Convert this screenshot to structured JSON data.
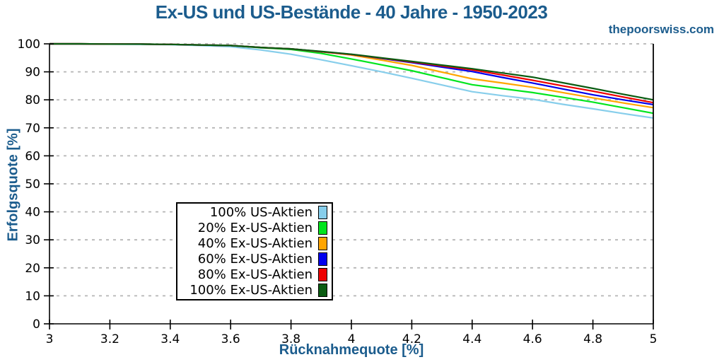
{
  "header": {
    "title": "Ex-US und US-Bestände - 40 Jahre - 1950-2023",
    "watermark": "thepoorswiss.com"
  },
  "chart_data": {
    "type": "line",
    "title": "Ex-US und US-Bestände - 40 Jahre - 1950-2023",
    "xlabel": "Rücknahmequote [%]",
    "ylabel": "Erfolgsquote [%]",
    "xlim": [
      3,
      5
    ],
    "ylim": [
      0,
      100
    ],
    "x_ticks": [
      3,
      3.2,
      3.4,
      3.6,
      3.8,
      4,
      4.2,
      4.4,
      4.6,
      4.8,
      5
    ],
    "y_ticks": [
      0,
      10,
      20,
      30,
      40,
      50,
      60,
      70,
      80,
      90,
      100
    ],
    "grid": "horizontal dashed gridlines only",
    "legend_position": "boxed, center-left inside plot",
    "x": [
      3.0,
      3.1,
      3.2,
      3.3,
      3.4,
      3.5,
      3.6,
      3.7,
      3.8,
      3.9,
      4.0,
      4.1,
      4.2,
      4.3,
      4.4,
      4.5,
      4.6,
      4.7,
      4.8,
      4.9,
      5.0
    ],
    "series": [
      {
        "name": "100% US-Aktien",
        "color": "#87CEEB",
        "values": [
          100,
          99.9,
          99.9,
          99.8,
          99.7,
          99.4,
          99.0,
          97.8,
          96.3,
          94.3,
          92.2,
          90.0,
          87.7,
          85.3,
          82.9,
          81.5,
          80.2,
          78.4,
          76.8,
          75.1,
          73.5
        ]
      },
      {
        "name": "20% Ex-US-Aktien",
        "color": "#00E51E",
        "values": [
          100,
          100,
          99.9,
          99.9,
          99.8,
          99.6,
          99.4,
          98.6,
          98.0,
          96.6,
          94.6,
          92.5,
          90.4,
          87.9,
          85.4,
          84.0,
          82.6,
          80.9,
          79.2,
          77.2,
          75.2
        ]
      },
      {
        "name": "40% Ex-US-Aktien",
        "color": "#FFA500",
        "values": [
          100,
          100,
          99.9,
          99.9,
          99.8,
          99.6,
          99.4,
          98.7,
          98.2,
          97.2,
          96.0,
          94.2,
          92.3,
          89.9,
          87.5,
          86.0,
          84.5,
          82.6,
          80.7,
          78.9,
          77.2
        ]
      },
      {
        "name": "60% Ex-US-Aktien",
        "color": "#0000EE",
        "values": [
          100,
          100,
          99.9,
          99.9,
          99.8,
          99.6,
          99.4,
          98.7,
          98.2,
          97.2,
          96.2,
          94.8,
          93.3,
          91.7,
          90.1,
          88.0,
          86.0,
          83.9,
          81.8,
          80.0,
          78.3
        ]
      },
      {
        "name": "80% Ex-US-Aktien",
        "color": "#EE0000",
        "values": [
          100,
          100,
          99.9,
          99.9,
          99.8,
          99.6,
          99.4,
          98.7,
          98.2,
          97.2,
          96.2,
          94.9,
          93.5,
          92.1,
          90.7,
          88.9,
          87.0,
          85.0,
          83.1,
          81.0,
          79.0
        ]
      },
      {
        "name": "100% Ex-US-Aktien",
        "color": "#0B5C12",
        "values": [
          100,
          100,
          99.9,
          99.9,
          99.8,
          99.6,
          99.4,
          98.7,
          98.2,
          97.3,
          96.3,
          95.0,
          93.7,
          92.4,
          91.1,
          89.6,
          88.1,
          86.1,
          84.1,
          82.0,
          80.0
        ]
      }
    ]
  },
  "colors": {
    "accent": "#1B5C8D",
    "grid": "#B5B5B5",
    "axis": "#000000",
    "background": "#FFFFFF"
  }
}
